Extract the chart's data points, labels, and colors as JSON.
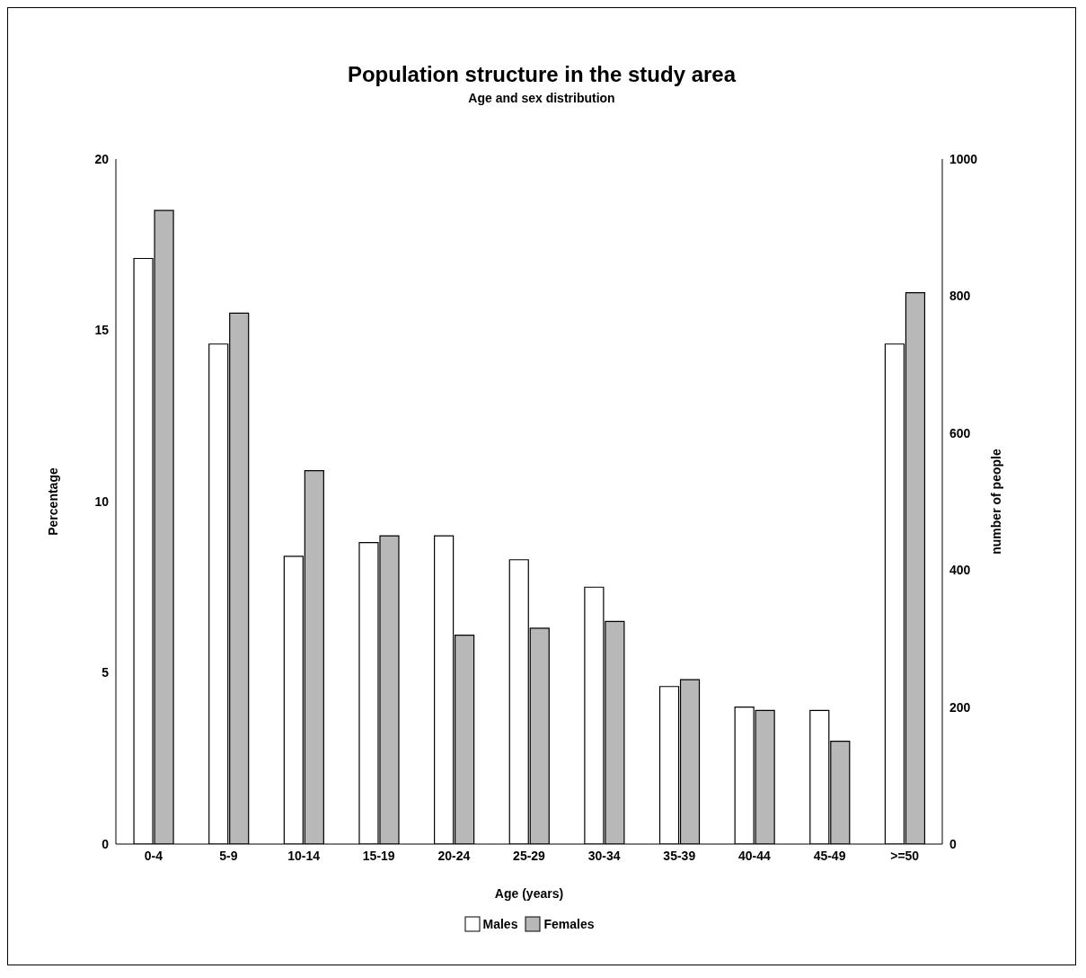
{
  "chart_data": {
    "type": "bar",
    "title": "Population structure in the study area",
    "subtitle": "Age and sex distribution",
    "xlabel": "Age (years)",
    "ylabel": "Percentage",
    "y2label": "number of people",
    "categories": [
      "0-4",
      "5-9",
      "10-14",
      "15-19",
      "20-24",
      "25-29",
      "30-34",
      "35-39",
      "40-44",
      "45-49",
      ">=50"
    ],
    "series": [
      {
        "name": "Males",
        "color": "#ffffff",
        "values": [
          17.1,
          14.6,
          8.4,
          8.8,
          9.0,
          8.3,
          7.5,
          4.6,
          4.0,
          3.9,
          14.6
        ]
      },
      {
        "name": "Females",
        "color": "#b8b8b8",
        "values": [
          18.5,
          15.5,
          10.9,
          9.0,
          6.1,
          6.3,
          6.5,
          4.8,
          3.9,
          3.0,
          16.1
        ]
      }
    ],
    "ylim": [
      0,
      20
    ],
    "yticks": [
      0,
      5,
      10,
      15,
      20
    ],
    "y2lim": [
      0,
      1000
    ],
    "y2ticks": [
      0,
      200,
      400,
      600,
      800,
      1000
    ],
    "grid": false,
    "legend": "bottom"
  }
}
